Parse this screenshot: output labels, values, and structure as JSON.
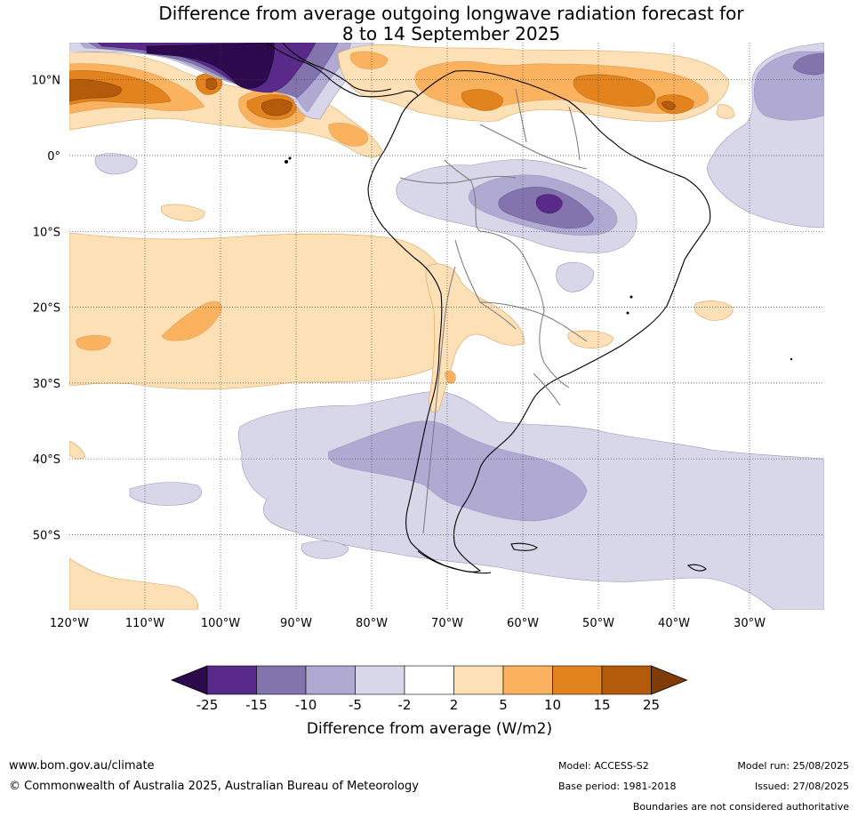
{
  "title": {
    "line1": "Difference from average outgoing longwave radiation forecast for",
    "line2": "8 to 14 September 2025"
  },
  "map": {
    "lat_labels": [
      "10°N",
      "0°",
      "10°S",
      "20°S",
      "30°S",
      "40°S",
      "50°S"
    ],
    "lon_labels": [
      "120°W",
      "110°W",
      "100°W",
      "90°W",
      "80°W",
      "70°W",
      "60°W",
      "50°W",
      "40°W",
      "30°W"
    ]
  },
  "colorbar": {
    "ticks": [
      "-25",
      "-15",
      "-10",
      "-5",
      "-2",
      "2",
      "5",
      "10",
      "15",
      "25"
    ],
    "colors": [
      "#5a2a8a",
      "#8474ae",
      "#b0a9d2",
      "#d8d7e9",
      "#ffffff",
      "#fde0b6",
      "#fbb25f",
      "#e2831e",
      "#b35a0b"
    ],
    "under_color": "#2d0a4e",
    "over_color": "#7f3b08",
    "label": "Difference from average (W/m2)"
  },
  "footer": {
    "website": "www.bom.gov.au/climate",
    "copyright": "© Commonwealth of Australia 2025, Australian Bureau of Meteorology",
    "model": "Model: ACCESS-S2",
    "model_run": "Model run: 25/08/2025",
    "base_period": "Base period: 1981-2018",
    "issued": "Issued: 27/08/2025",
    "disclaimer": "Boundaries are not considered authoritative"
  }
}
